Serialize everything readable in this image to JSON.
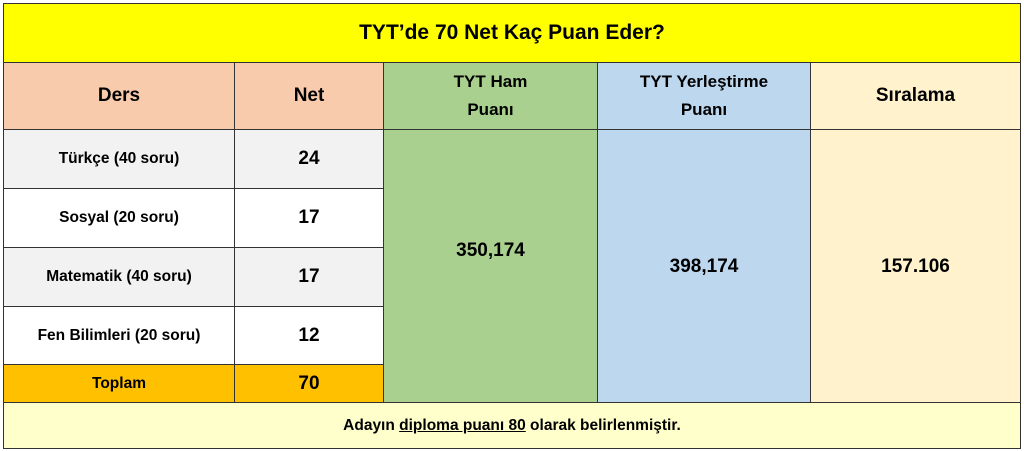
{
  "title": "TYT’de 70 Net Kaç Puan Eder?",
  "headers": {
    "ders": "Ders",
    "net": "Net",
    "ham_line1": "TYT Ham",
    "ham_line2": "Puanı",
    "yer_line1": "TYT Yerleştirme",
    "yer_line2": "Puanı",
    "siralama": "Sıralama"
  },
  "rows": [
    {
      "ders": "Türkçe (40 soru)",
      "net": "24"
    },
    {
      "ders": "Sosyal (20 soru)",
      "net": "17"
    },
    {
      "ders": "Matematik (40 soru)",
      "net": "17"
    },
    {
      "ders": "Fen Bilimleri (20 soru)",
      "net": "12"
    }
  ],
  "total": {
    "label": "Toplam",
    "net": "70"
  },
  "results": {
    "ham_puan": "350,174",
    "yerlestirme_puan": "398,174",
    "siralama": "157.106"
  },
  "footer": {
    "before": "Adayın ",
    "underlined": "diploma puanı 80",
    "after": " olarak belirlenmiştir."
  },
  "colors": {
    "title": "#FFFF00",
    "header": "#F8CBAD",
    "ham": "#A9D08E",
    "yer": "#BDD7EE",
    "siralama": "#FFF2CC",
    "total": "#FFC000",
    "footer": "#FFFFCC"
  }
}
